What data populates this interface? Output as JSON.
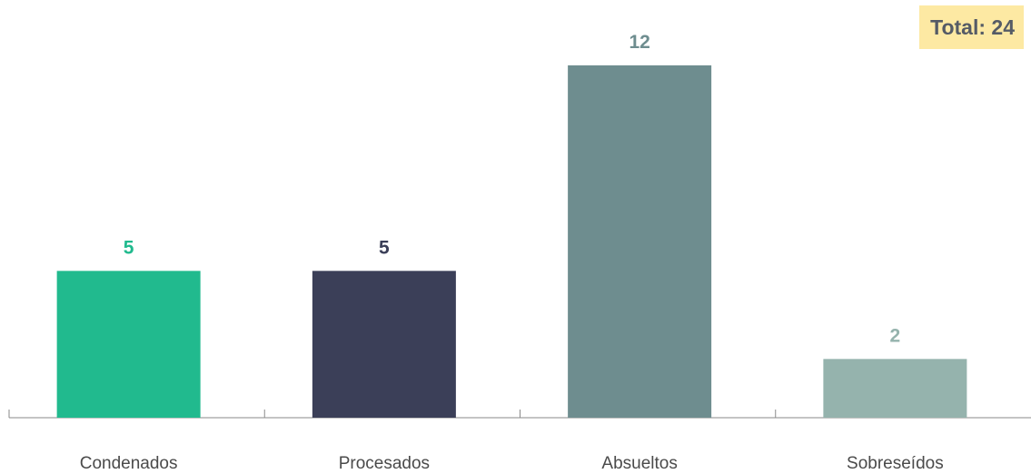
{
  "total_badge": {
    "label": "Total: 24",
    "background": "#fde9a3",
    "text_color": "#555b66"
  },
  "chart_data": {
    "type": "bar",
    "categories": [
      "Condenados",
      "Procesados",
      "Absueltos",
      "Sobreseídos"
    ],
    "values": [
      5,
      5,
      12,
      2
    ],
    "colors": [
      "#21ba8e",
      "#3b3f58",
      "#6e8d8f",
      "#95b3ad"
    ],
    "value_label_colors": [
      "#21ba8e",
      "#3b3f58",
      "#6e8d8f",
      "#95b3ad"
    ],
    "title": "",
    "xlabel": "",
    "ylabel": "",
    "ylim": [
      0,
      12
    ],
    "grid": false,
    "legend": "none"
  }
}
